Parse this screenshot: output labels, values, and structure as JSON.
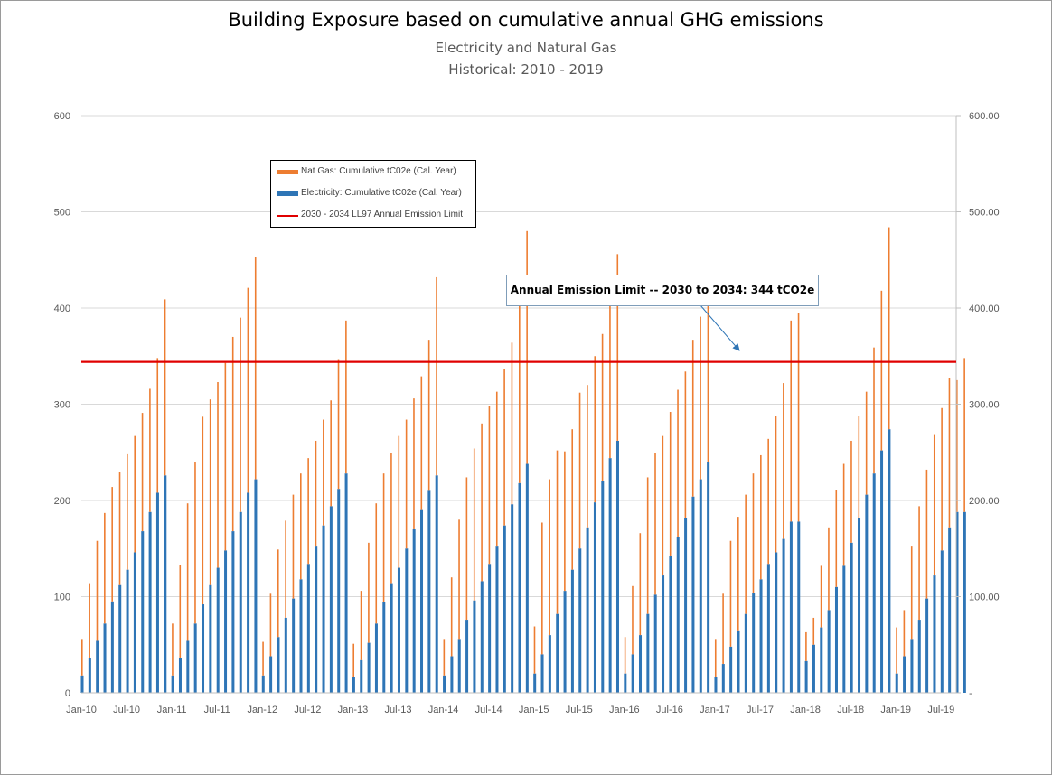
{
  "title": "Building Exposure based on cumulative annual GHG emissions",
  "subtitle1": "Electricity and Natural Gas",
  "subtitle2": "Historical: 2010 - 2019",
  "legend": [
    {
      "label": "Nat Gas: Cumulative tC02e (Cal. Year)",
      "color": "#ed7d31"
    },
    {
      "label": "Electricity: Cumulative tC02e (Cal. Year)",
      "color": "#2e75b6"
    },
    {
      "label": "2030 - 2034 LL97 Annual Emission Limit",
      "color": "#e00000"
    }
  ],
  "annotation": "Annual Emission Limit -- 2030 to 2034:  344 tCO2e",
  "colors": {
    "gas": "#ed7d31",
    "elec": "#2e75b6",
    "limit": "#e00000",
    "grid": "#d9d9d9"
  },
  "chart_data": {
    "type": "bar",
    "stacked": true,
    "x_tick_labels": [
      "Jan-10",
      "Jul-10",
      "Jan-11",
      "Jul-11",
      "Jan-12",
      "Jul-12",
      "Jan-13",
      "Jul-13",
      "Jan-14",
      "Jul-14",
      "Jan-15",
      "Jul-15",
      "Jan-16",
      "Jul-16",
      "Jan-17",
      "Jul-17",
      "Jan-18",
      "Jul-18",
      "Jan-19",
      "Jul-19"
    ],
    "y_ticks_left": [
      "600",
      "500",
      "400",
      "300",
      "200",
      "100",
      "0"
    ],
    "y_ticks_right": [
      "600.00",
      "500.00",
      "400.00",
      "300.00",
      "200.00",
      "100.00",
      "-"
    ],
    "ylim": [
      0,
      600
    ],
    "limit_line": 344,
    "grid": true,
    "legend_position": "upper-left",
    "series": [
      {
        "name": "Electricity: Cumulative tC02e (Cal. Year)",
        "values": [
          18,
          36,
          54,
          72,
          95,
          112,
          128,
          146,
          168,
          188,
          208,
          226,
          18,
          36,
          54,
          72,
          92,
          112,
          130,
          148,
          168,
          188,
          208,
          222,
          18,
          38,
          58,
          78,
          98,
          118,
          134,
          152,
          174,
          194,
          212,
          228,
          16,
          34,
          52,
          72,
          94,
          114,
          130,
          150,
          170,
          190,
          210,
          226,
          18,
          38,
          56,
          76,
          96,
          116,
          134,
          152,
          174,
          196,
          218,
          238,
          20,
          40,
          60,
          82,
          106,
          128,
          150,
          172,
          198,
          220,
          244,
          262,
          20,
          40,
          60,
          82,
          102,
          122,
          142,
          162,
          182,
          204,
          222,
          240,
          16,
          30,
          48,
          64,
          82,
          104,
          118,
          134,
          146,
          160,
          178,
          178,
          33,
          50,
          68,
          86,
          110,
          132,
          156,
          182,
          206,
          228,
          252,
          274,
          20,
          38,
          56,
          76,
          98,
          122,
          148,
          172,
          188,
          188
        ]
      },
      {
        "name": "Nat Gas: Cumulative tC02e (Cal. Year)",
        "values": [
          38,
          78,
          104,
          115,
          119,
          118,
          120,
          121,
          123,
          128,
          140,
          183,
          54,
          97,
          143,
          168,
          195,
          193,
          193,
          195,
          202,
          202,
          213,
          231,
          35,
          65,
          91,
          101,
          108,
          110,
          110,
          110,
          110,
          110,
          134,
          159,
          35,
          72,
          104,
          125,
          134,
          135,
          137,
          134,
          136,
          139,
          157,
          206,
          38,
          82,
          124,
          148,
          158,
          164,
          164,
          161,
          163,
          168,
          192,
          242,
          49,
          137,
          162,
          170,
          145,
          146,
          162,
          148,
          152,
          153,
          163,
          194,
          38,
          71,
          106,
          142,
          147,
          145,
          150,
          153,
          152,
          163,
          169,
          166,
          40,
          73,
          110,
          119,
          124,
          124,
          129,
          130,
          142,
          162,
          209,
          217,
          30,
          28,
          64,
          86,
          101,
          106,
          106,
          106,
          107,
          131,
          166,
          210,
          48,
          48,
          96,
          118,
          134,
          146,
          148,
          155,
          137,
          160
        ]
      }
    ]
  }
}
